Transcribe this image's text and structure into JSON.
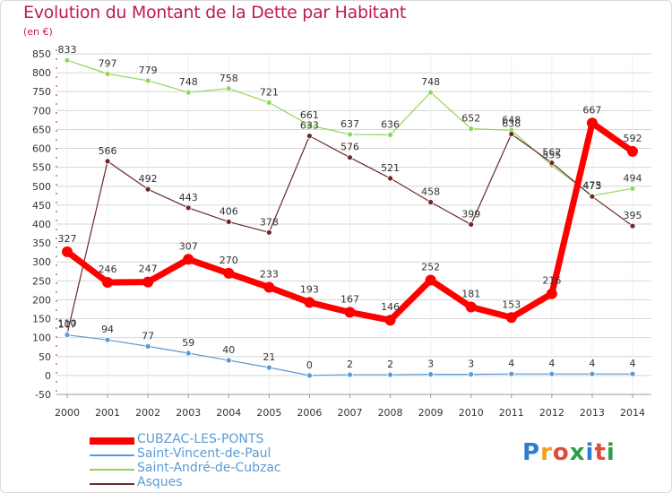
{
  "title": "Evolution du Montant de la Dette par Habitant",
  "unit_label": "(en €)",
  "brand": {
    "text": "Proxiti",
    "letter_colors": [
      "#2e7dd1",
      "#f0a020",
      "#e24b3b",
      "#2e9d4d",
      "#2e7dd1",
      "#e24b3b",
      "#2e9d4d"
    ]
  },
  "chart_data": {
    "type": "line",
    "title": "Evolution du Montant de la Dette par Habitant",
    "ylabel": "(en €)",
    "xlabel": "",
    "x": [
      "2000",
      "2001",
      "2002",
      "2003",
      "2004",
      "2005",
      "2006",
      "2007",
      "2008",
      "2009",
      "2010",
      "2011",
      "2012",
      "2013",
      "2014"
    ],
    "y_ticks": [
      -50,
      0,
      50,
      100,
      150,
      200,
      250,
      300,
      350,
      400,
      450,
      500,
      550,
      600,
      650,
      700,
      750,
      800,
      850
    ],
    "ylim": [
      -50,
      850
    ],
    "grid": "horizontal",
    "legend_position": "bottom-left",
    "series": [
      {
        "name": "CUBZAC-LES-PONTS",
        "color": "#ff0000",
        "values": [
          327,
          246,
          247,
          307,
          270,
          233,
          193,
          167,
          146,
          252,
          181,
          153,
          216,
          667,
          592
        ]
      },
      {
        "name": "Saint-Vincent-de-Paul",
        "color": "#5b9bd5",
        "values": [
          107,
          94,
          77,
          59,
          40,
          21,
          0,
          2,
          2,
          3,
          3,
          4,
          4,
          4,
          4
        ]
      },
      {
        "name": "Saint-André-de-Cubzac",
        "color": "#8fd65a",
        "values": [
          833,
          797,
          779,
          748,
          758,
          721,
          661,
          637,
          636,
          748,
          652,
          648,
          555,
          475,
          494
        ]
      },
      {
        "name": "Asques",
        "color": "#6b2a2a",
        "values": [
          110,
          566,
          492,
          443,
          406,
          378,
          633,
          576,
          521,
          458,
          399,
          638,
          562,
          473,
          395
        ]
      }
    ]
  }
}
